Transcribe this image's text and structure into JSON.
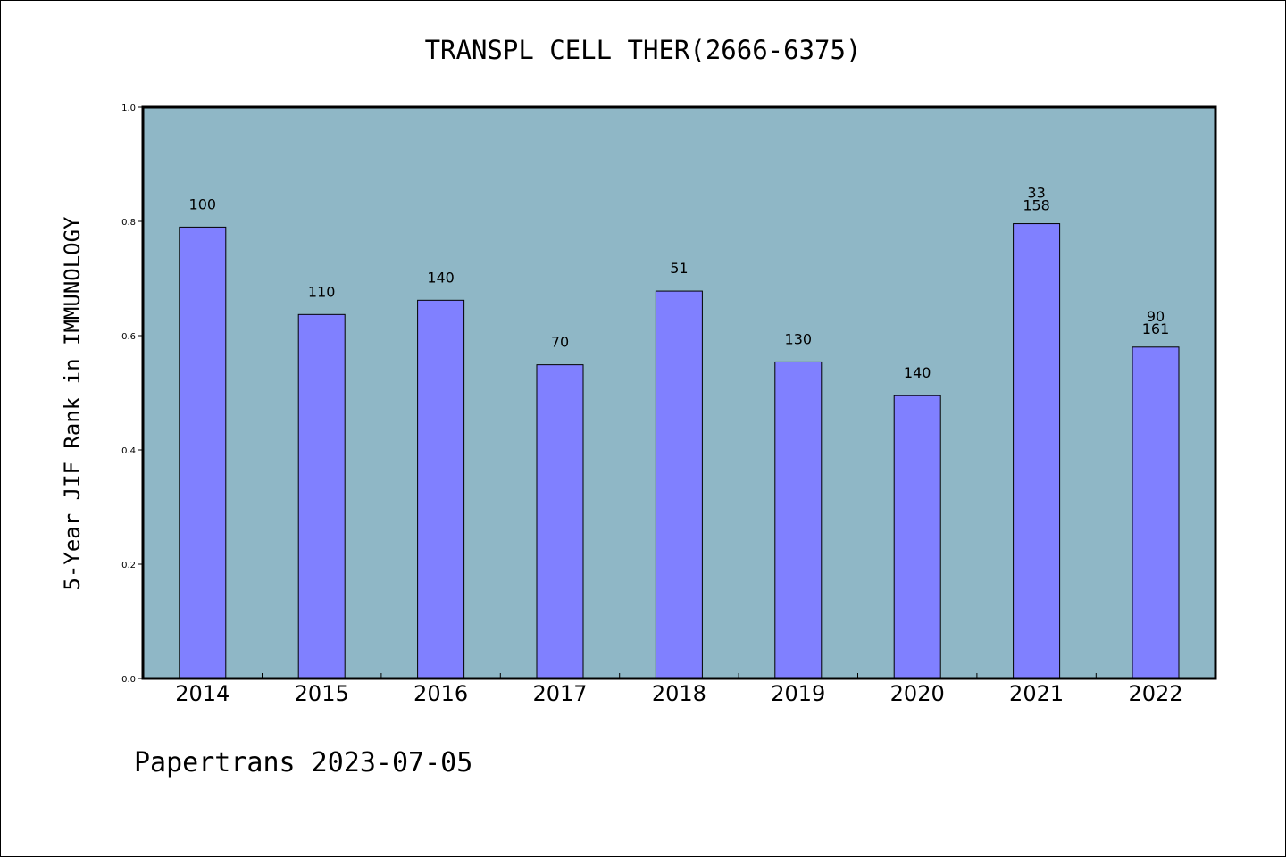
{
  "chart_data": {
    "type": "bar",
    "title": "TRANSPL CELL THER(2666-6375)",
    "xlabel": "",
    "ylabel": "5-Year JIF Rank in IMMUNOLOGY",
    "ylim": [
      0.0,
      1.0
    ],
    "yticks": [
      "0.0",
      "0.2",
      "0.4",
      "0.6",
      "0.8",
      "1.0"
    ],
    "categories": [
      "2014",
      "2015",
      "2016",
      "2017",
      "2018",
      "2019",
      "2020",
      "2021",
      "2022"
    ],
    "series": [
      {
        "values": [
          0.79,
          0.637,
          0.662,
          0.549,
          0.678,
          0.554,
          0.495,
          0.796,
          0.58
        ],
        "data_labels": [
          [
            "100"
          ],
          [
            "110"
          ],
          [
            "140"
          ],
          [
            "70"
          ],
          [
            "51"
          ],
          [
            "130"
          ],
          [
            "140"
          ],
          [
            "33",
            "158"
          ],
          [
            "90",
            "161"
          ]
        ]
      }
    ],
    "grid": false,
    "colors": {
      "plot_background": "#8fb7c6",
      "bar_fill": "#8080ff",
      "bar_stroke": "#000000"
    }
  },
  "footer": "Papertrans 2023-07-05"
}
